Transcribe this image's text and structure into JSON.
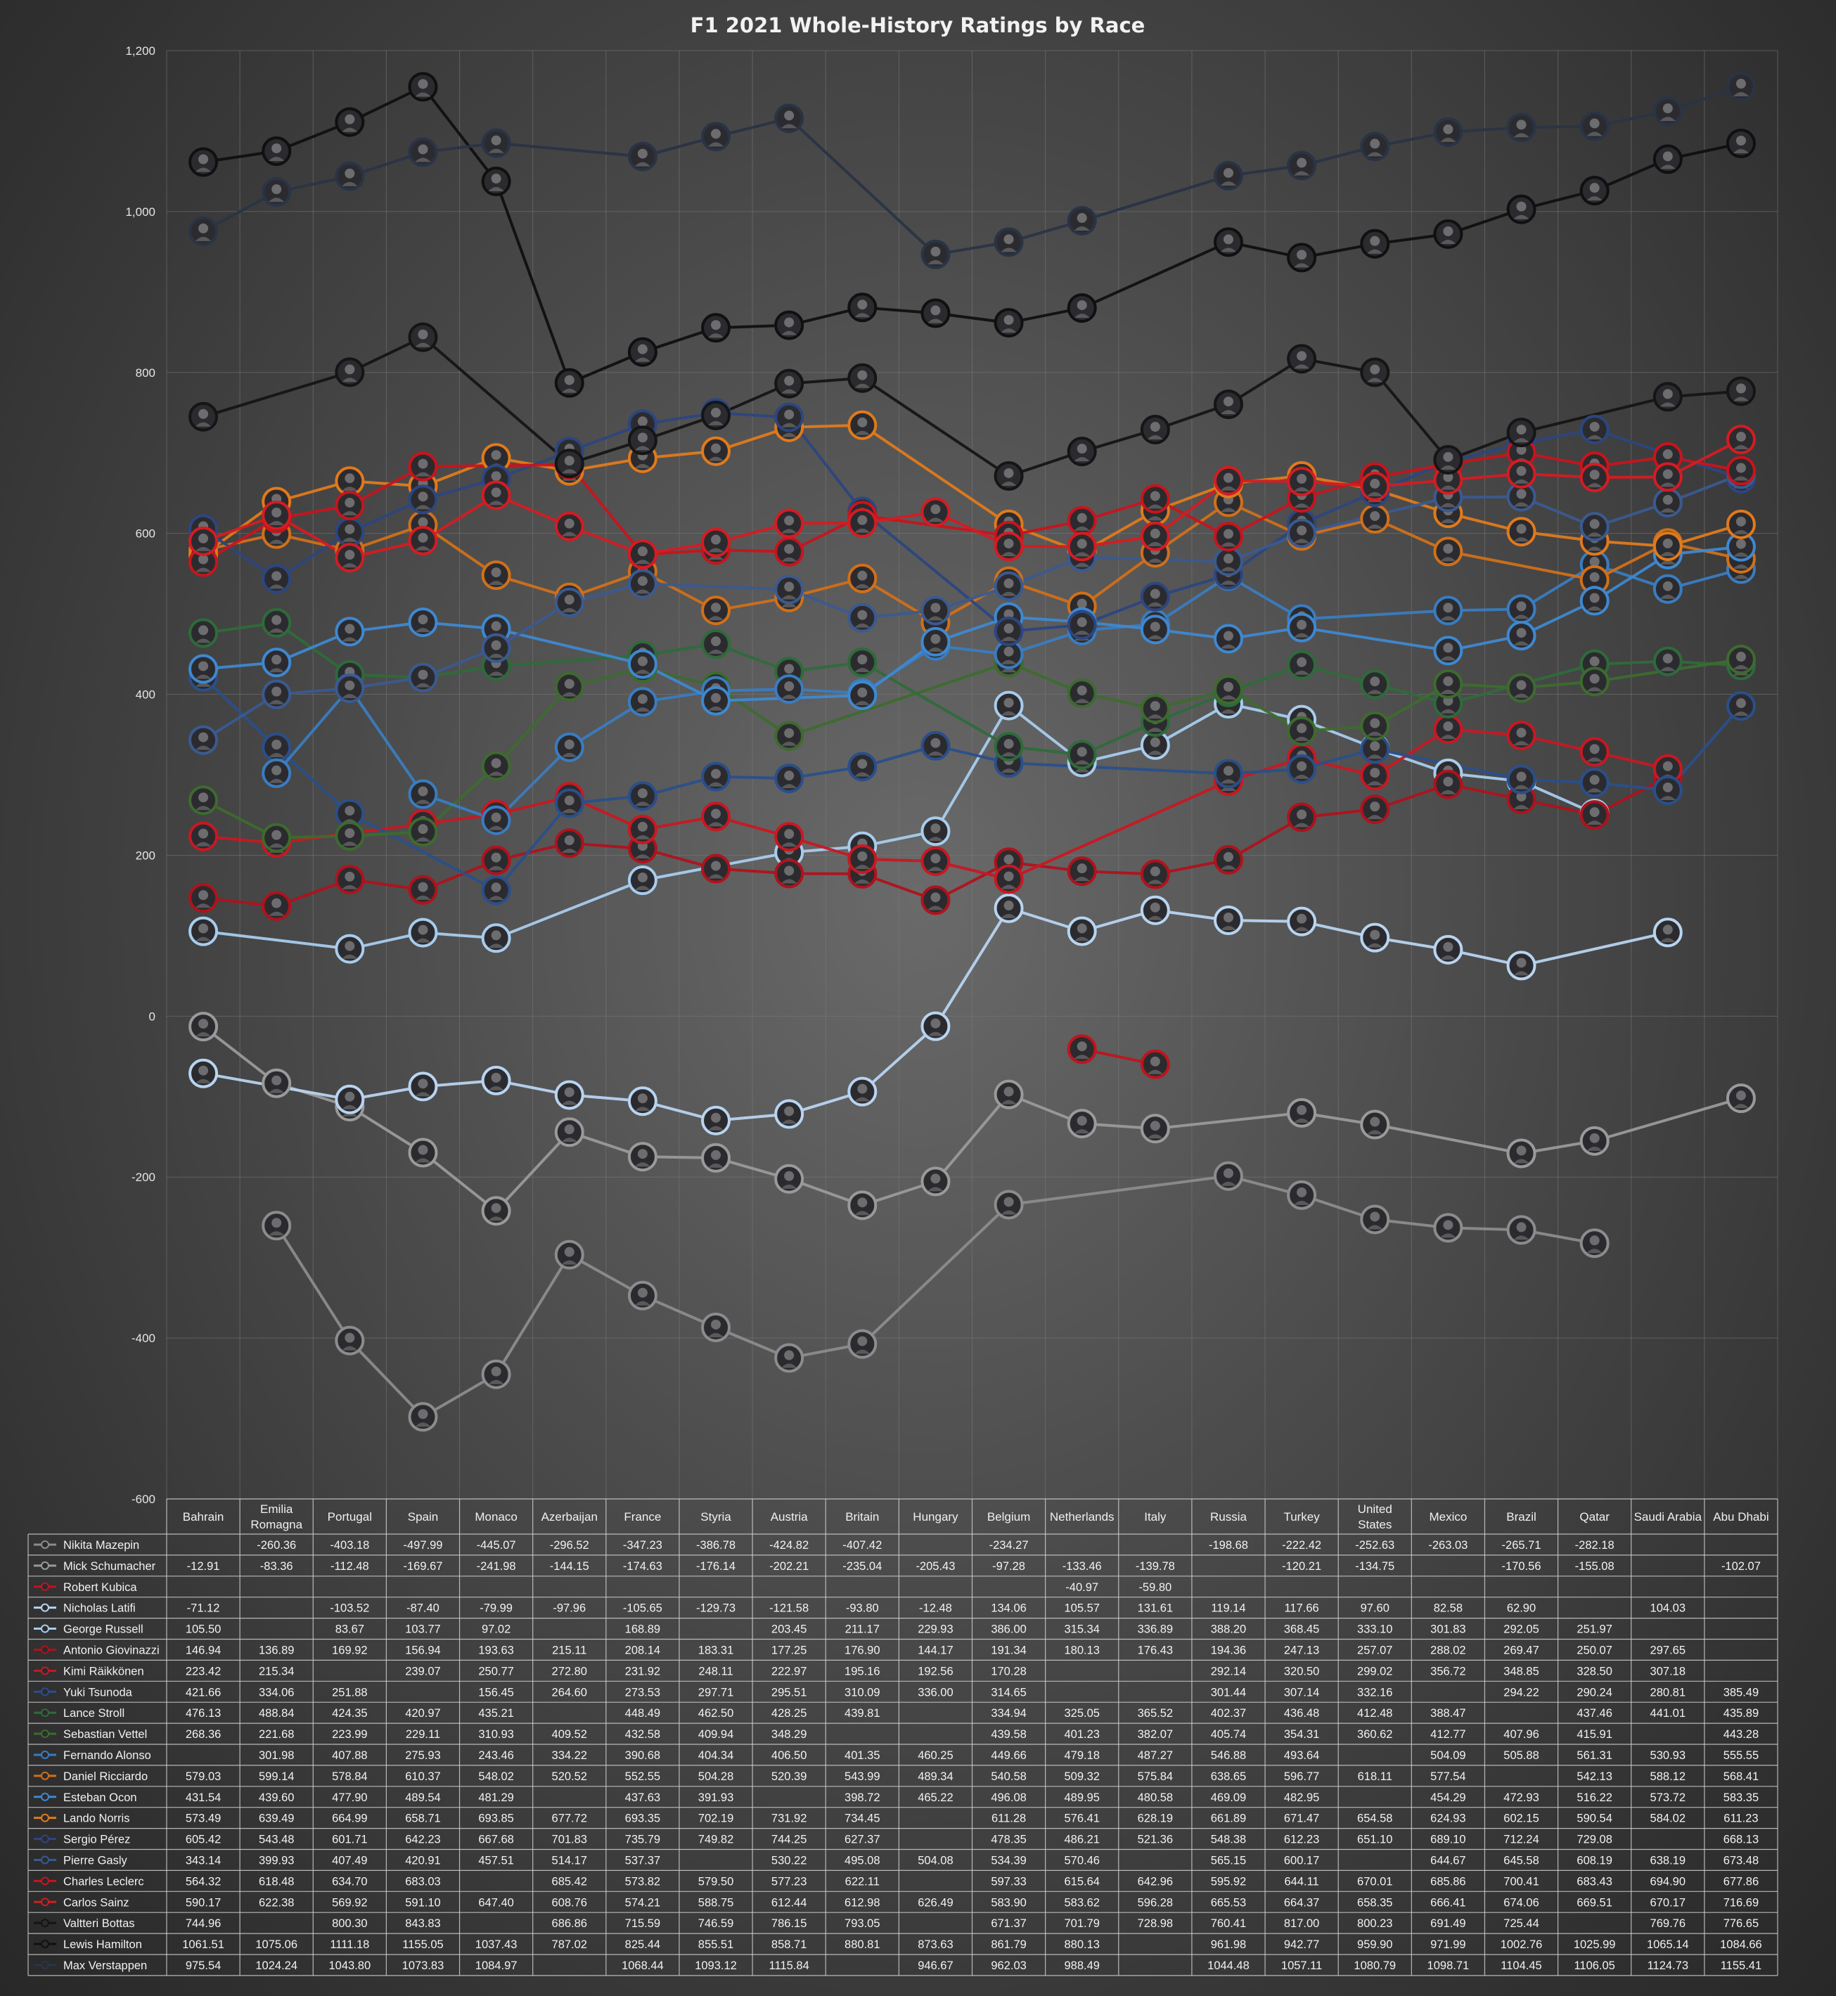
{
  "chart_data": {
    "type": "line",
    "title": "F1 2021 Whole-History Ratings by Race",
    "ylim": [
      -600,
      1200
    ],
    "yticks": [
      "1,200",
      "1,000",
      "800",
      "600",
      "400",
      "200",
      "0",
      "-200",
      "-400",
      "-600"
    ],
    "ytick_values": [
      1200,
      1000,
      800,
      600,
      400,
      200,
      0,
      -200,
      -400,
      -600
    ],
    "grid": true,
    "legend_placement": "data-table-below",
    "categories": [
      "Bahrain",
      "Emilia Romagna",
      "Portugal",
      "Spain",
      "Monaco",
      "Azerbaijan",
      "France",
      "Styria",
      "Austria",
      "Britain",
      "Hungary",
      "Belgium",
      "Netherlands",
      "Italy",
      "Russia",
      "Turkey",
      "United States",
      "Mexico",
      "Brazil",
      "Qatar",
      "Saudi Arabia",
      "Abu Dhabi"
    ],
    "category_lines": [
      [
        "Bahrain"
      ],
      [
        "Emilia",
        "Romagna"
      ],
      [
        "Portugal"
      ],
      [
        "Spain"
      ],
      [
        "Monaco"
      ],
      [
        "Azerbaijan"
      ],
      [
        "France"
      ],
      [
        "Styria"
      ],
      [
        "Austria"
      ],
      [
        "Britain"
      ],
      [
        "Hungary"
      ],
      [
        "Belgium"
      ],
      [
        "Netherlands"
      ],
      [
        "Italy"
      ],
      [
        "Russia"
      ],
      [
        "Turkey"
      ],
      [
        "United",
        "States"
      ],
      [
        "Mexico"
      ],
      [
        "Brazil"
      ],
      [
        "Qatar"
      ],
      [
        "Saudi Arabia"
      ],
      [
        "Abu Dhabi"
      ]
    ],
    "series": [
      {
        "name": "Nikita Mazepin",
        "color": "#8c8c8c",
        "values": [
          null,
          -260.36,
          -403.18,
          -497.99,
          -445.07,
          -296.52,
          -347.23,
          -386.78,
          -424.82,
          -407.42,
          null,
          -234.27,
          null,
          null,
          -198.68,
          -222.42,
          -252.63,
          -263.03,
          -265.71,
          -282.18,
          null,
          null
        ]
      },
      {
        "name": "Mick Schumacher",
        "color": "#9a9a9a",
        "values": [
          -12.91,
          -83.36,
          -112.48,
          -169.67,
          -241.98,
          -144.15,
          -174.63,
          -176.14,
          -202.21,
          -235.04,
          -205.43,
          -97.28,
          -133.46,
          -139.78,
          null,
          -120.21,
          -134.75,
          null,
          -170.56,
          -155.08,
          null,
          -102.07
        ]
      },
      {
        "name": "Robert Kubica",
        "color": "#c0141e",
        "values": [
          null,
          null,
          null,
          null,
          null,
          null,
          null,
          null,
          null,
          null,
          null,
          null,
          -40.97,
          -59.8,
          null,
          null,
          null,
          null,
          null,
          null,
          null,
          null
        ]
      },
      {
        "name": "Nicholas Latifi",
        "color": "#b8d4f0",
        "values": [
          -71.12,
          null,
          -103.52,
          -87.4,
          -79.99,
          -97.96,
          -105.65,
          -129.73,
          -121.58,
          -93.8,
          -12.48,
          134.06,
          105.57,
          131.61,
          119.14,
          117.66,
          97.6,
          82.58,
          62.9,
          null,
          104.03,
          null
        ]
      },
      {
        "name": "George Russell",
        "color": "#a8cced",
        "values": [
          105.5,
          null,
          83.67,
          103.77,
          97.02,
          null,
          168.89,
          null,
          203.45,
          211.17,
          229.93,
          386.0,
          315.34,
          336.89,
          388.2,
          368.45,
          333.1,
          301.83,
          292.05,
          251.97,
          null,
          null
        ]
      },
      {
        "name": "Antonio Giovinazzi",
        "color": "#b0121c",
        "values": [
          146.94,
          136.89,
          169.92,
          156.94,
          193.63,
          215.11,
          208.14,
          183.31,
          177.25,
          176.9,
          144.17,
          191.34,
          180.13,
          176.43,
          194.36,
          247.13,
          257.07,
          288.02,
          269.47,
          250.07,
          297.65,
          null
        ]
      },
      {
        "name": "Kimi Räikkönen",
        "color": "#c81822",
        "values": [
          223.42,
          215.34,
          null,
          239.07,
          250.77,
          272.8,
          231.92,
          248.11,
          222.97,
          195.16,
          192.56,
          170.28,
          null,
          null,
          292.14,
          320.5,
          299.02,
          356.72,
          348.85,
          328.5,
          307.18,
          null
        ]
      },
      {
        "name": "Yuki Tsunoda",
        "color": "#2a4f8a",
        "values": [
          421.66,
          334.06,
          251.88,
          null,
          156.45,
          264.6,
          273.53,
          297.71,
          295.51,
          310.09,
          336.0,
          314.65,
          null,
          null,
          301.44,
          307.14,
          332.16,
          null,
          294.22,
          290.24,
          280.81,
          385.49
        ]
      },
      {
        "name": "Lance Stroll",
        "color": "#2e6b3a",
        "values": [
          476.13,
          488.84,
          424.35,
          420.97,
          435.21,
          null,
          448.49,
          462.5,
          428.25,
          439.81,
          null,
          334.94,
          325.05,
          365.52,
          402.37,
          436.48,
          412.48,
          388.47,
          null,
          437.46,
          441.01,
          435.89
        ]
      },
      {
        "name": "Sebastian Vettel",
        "color": "#3d6b2e",
        "values": [
          268.36,
          221.68,
          223.99,
          229.11,
          310.93,
          409.52,
          432.58,
          409.94,
          348.29,
          null,
          null,
          439.58,
          401.23,
          382.07,
          405.74,
          354.31,
          360.62,
          412.77,
          407.96,
          415.91,
          null,
          443.28
        ]
      },
      {
        "name": "Fernando Alonso",
        "color": "#3a7cc0",
        "values": [
          null,
          301.98,
          407.88,
          275.93,
          243.46,
          334.22,
          390.68,
          404.34,
          406.5,
          401.35,
          460.25,
          449.66,
          479.18,
          487.27,
          546.88,
          493.64,
          null,
          504.09,
          505.88,
          561.31,
          530.93,
          555.55
        ]
      },
      {
        "name": "Daniel Ricciardo",
        "color": "#d0701a",
        "values": [
          579.03,
          599.14,
          578.84,
          610.37,
          548.02,
          520.52,
          552.55,
          504.28,
          520.39,
          543.99,
          489.34,
          540.58,
          509.32,
          575.84,
          638.65,
          596.77,
          618.11,
          577.54,
          null,
          542.13,
          588.12,
          568.41
        ]
      },
      {
        "name": "Esteban Ocon",
        "color": "#3f88d0",
        "values": [
          431.54,
          439.6,
          477.9,
          489.54,
          481.29,
          null,
          437.63,
          391.93,
          null,
          398.72,
          465.22,
          496.08,
          489.95,
          480.58,
          469.09,
          482.95,
          null,
          454.29,
          472.93,
          516.22,
          573.72,
          583.35
        ]
      },
      {
        "name": "Lando Norris",
        "color": "#e07a1c",
        "values": [
          573.49,
          639.49,
          664.99,
          658.71,
          693.85,
          677.72,
          693.35,
          702.19,
          731.92,
          734.45,
          null,
          611.28,
          576.41,
          628.19,
          661.89,
          671.47,
          654.58,
          624.93,
          602.15,
          590.54,
          584.02,
          611.23
        ]
      },
      {
        "name": "Sergio Pérez",
        "color": "#2c4680",
        "values": [
          605.42,
          543.48,
          601.71,
          642.23,
          667.68,
          701.83,
          735.79,
          749.82,
          744.25,
          627.37,
          null,
          478.35,
          486.21,
          521.36,
          548.38,
          612.23,
          651.1,
          689.1,
          712.24,
          729.08,
          null,
          668.13
        ]
      },
      {
        "name": "Pierre Gasly",
        "color": "#3a5a90",
        "values": [
          343.14,
          399.93,
          407.49,
          420.91,
          457.51,
          514.17,
          537.37,
          null,
          530.22,
          495.08,
          504.08,
          534.39,
          570.46,
          null,
          565.15,
          600.17,
          null,
          644.67,
          645.58,
          608.19,
          638.19,
          673.48
        ]
      },
      {
        "name": "Charles Leclerc",
        "color": "#c8141c",
        "values": [
          564.32,
          618.48,
          634.7,
          683.03,
          null,
          685.42,
          573.82,
          579.5,
          577.23,
          622.11,
          null,
          597.33,
          615.64,
          642.96,
          595.92,
          644.11,
          670.01,
          685.86,
          700.41,
          683.43,
          694.9,
          677.86
        ]
      },
      {
        "name": "Carlos Sainz",
        "color": "#d41c22",
        "values": [
          590.17,
          622.38,
          569.92,
          591.1,
          647.4,
          608.76,
          574.21,
          588.75,
          612.44,
          612.98,
          626.49,
          583.9,
          583.62,
          596.28,
          665.53,
          664.37,
          658.35,
          666.41,
          674.06,
          669.51,
          670.17,
          716.69
        ]
      },
      {
        "name": "Valtteri Bottas",
        "color": "#151515",
        "values": [
          744.96,
          null,
          800.3,
          843.83,
          null,
          686.86,
          715.59,
          746.59,
          786.15,
          793.05,
          null,
          671.37,
          701.79,
          728.98,
          760.41,
          817.0,
          800.23,
          691.49,
          725.44,
          null,
          769.76,
          776.65
        ]
      },
      {
        "name": "Lewis Hamilton",
        "color": "#101010",
        "values": [
          1061.51,
          1075.06,
          1111.18,
          1155.05,
          1037.43,
          787.02,
          825.44,
          855.51,
          858.71,
          880.81,
          873.63,
          861.79,
          880.13,
          null,
          961.98,
          942.77,
          959.9,
          971.99,
          1002.76,
          1025.99,
          1065.14,
          1084.66
        ]
      },
      {
        "name": "Max Verstappen",
        "color": "#2a3446",
        "values": [
          975.54,
          1024.24,
          1043.8,
          1073.83,
          1084.97,
          null,
          1068.44,
          1093.12,
          1115.84,
          null,
          946.67,
          962.03,
          988.49,
          null,
          1044.48,
          1057.11,
          1080.79,
          1098.71,
          1104.45,
          1106.05,
          1124.73,
          1155.41
        ]
      }
    ]
  }
}
